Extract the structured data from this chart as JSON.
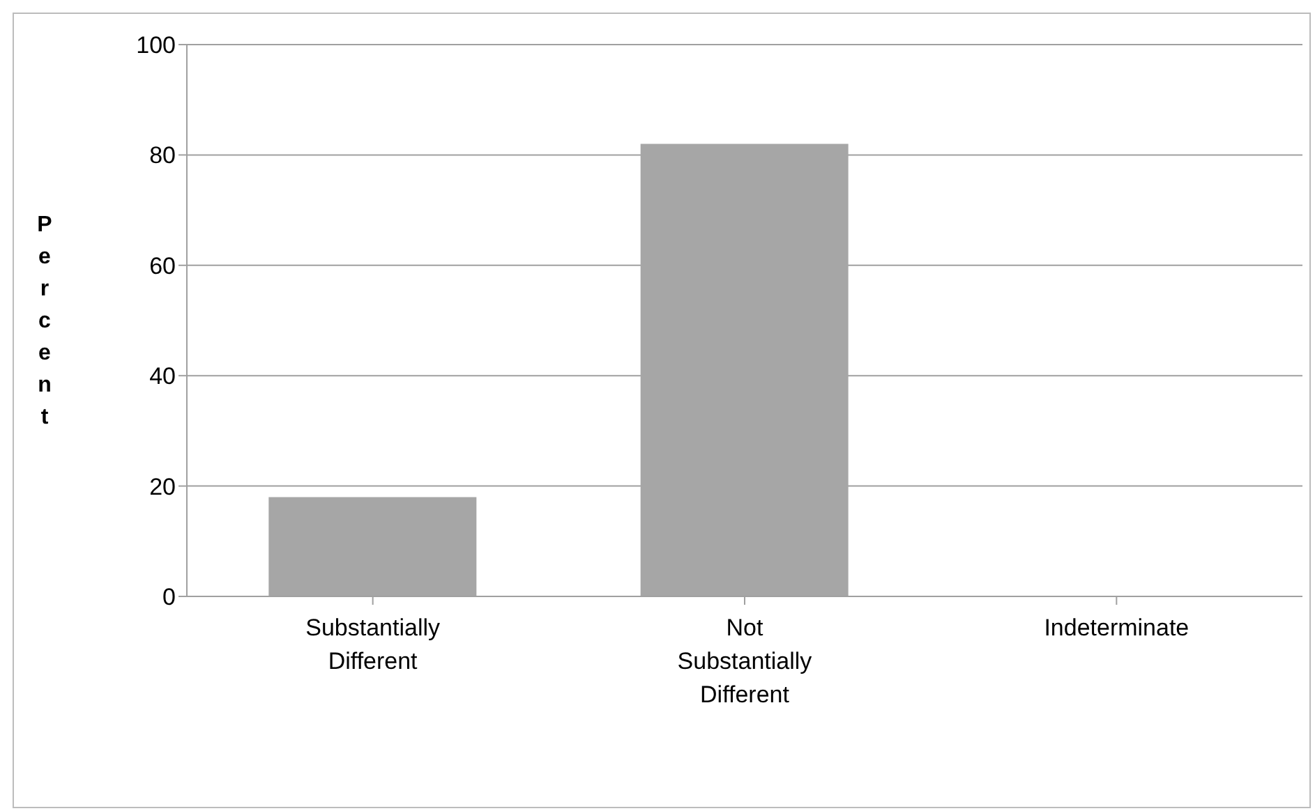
{
  "chart_data": {
    "type": "bar",
    "ylabel": "Percent",
    "categories": [
      "Substantially Different",
      "Not Substantially Different",
      "Indeterminate"
    ],
    "values": [
      18,
      82,
      0
    ],
    "color": "#a6a6a6",
    "ylim": [
      0,
      100
    ],
    "yticks": [
      0,
      20,
      40,
      60,
      80,
      100
    ],
    "grid": "y"
  }
}
